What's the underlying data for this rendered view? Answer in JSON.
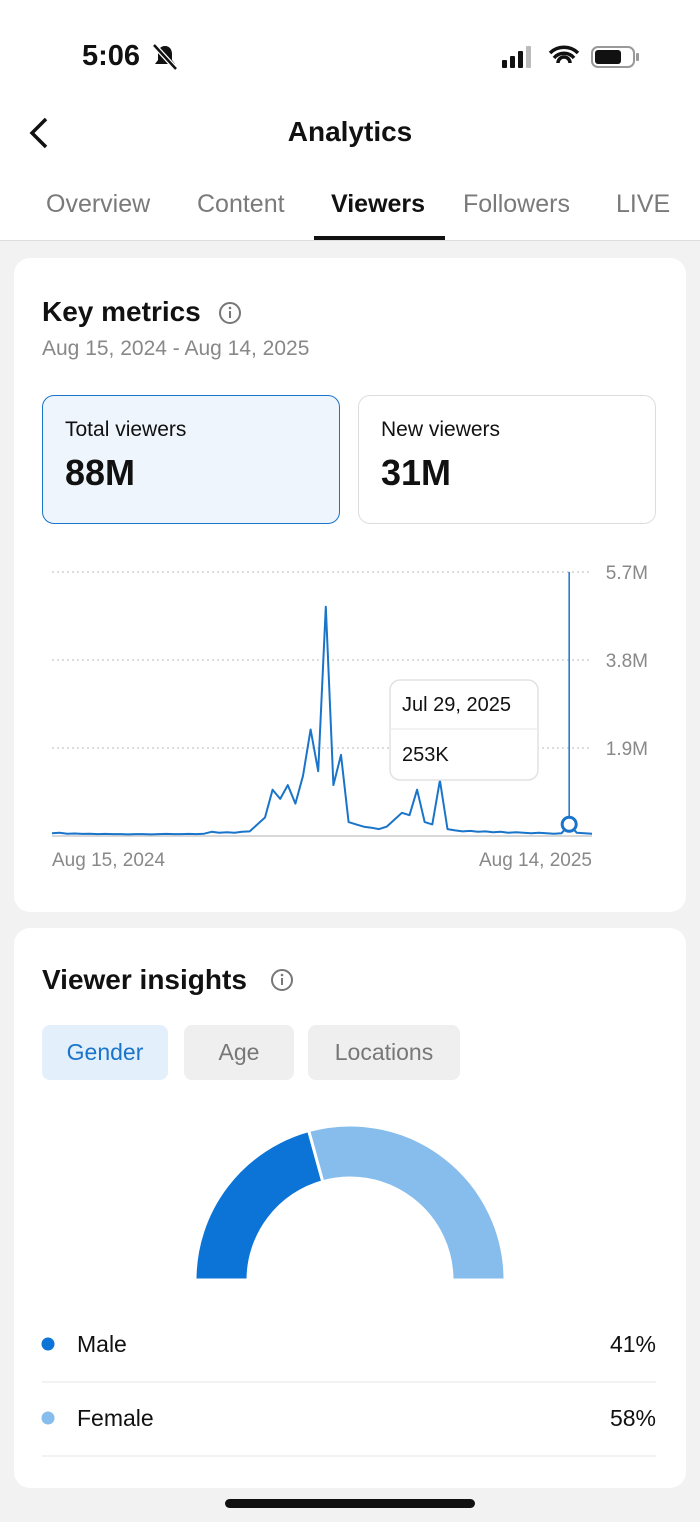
{
  "status_bar": {
    "time": "5:06"
  },
  "header": {
    "title": "Analytics"
  },
  "tabs": {
    "items": [
      "Overview",
      "Content",
      "Viewers",
      "Followers",
      "LIVE"
    ],
    "active": 2
  },
  "key_metrics": {
    "title": "Key metrics",
    "date_range": "Aug 15, 2024 - Aug 14, 2025",
    "cards": [
      {
        "label": "Total viewers",
        "value": "88M"
      },
      {
        "label": "New viewers",
        "value": "31M"
      }
    ]
  },
  "viewer_insights": {
    "title": "Viewer insights",
    "filters": [
      "Gender",
      "Age",
      "Locations"
    ],
    "active": 0
  },
  "chart_data": [
    {
      "type": "line",
      "color": "#1a74c9",
      "categories": [
        "Aug 15, 2024",
        null,
        null,
        null,
        null,
        null,
        null,
        null,
        null,
        null,
        null,
        null,
        null,
        null,
        null,
        null,
        null,
        null,
        null,
        null,
        null,
        null,
        null,
        null,
        null,
        null,
        null,
        null,
        null,
        null,
        null,
        null,
        null,
        null,
        null,
        null,
        null,
        null,
        null,
        null,
        null,
        null,
        null,
        null,
        null,
        null,
        null,
        null,
        null,
        null,
        null,
        null,
        null,
        null,
        null,
        null,
        null,
        null,
        null,
        null,
        null,
        null,
        null,
        null,
        null,
        null,
        null,
        null,
        null,
        null,
        null,
        "Aug 14, 2025"
      ],
      "values": [
        60000,
        70000,
        50000,
        55000,
        45000,
        50000,
        40000,
        45000,
        40000,
        40000,
        35000,
        40000,
        40000,
        35000,
        40000,
        45000,
        40000,
        40000,
        45000,
        40000,
        50000,
        90000,
        70000,
        80000,
        70000,
        90000,
        100000,
        250000,
        400000,
        1000000,
        800000,
        1100000,
        700000,
        1300000,
        2300000,
        1400000,
        4950000,
        1100000,
        1750000,
        300000,
        250000,
        200000,
        180000,
        150000,
        200000,
        350000,
        500000,
        450000,
        1000000,
        300000,
        250000,
        1200000,
        150000,
        120000,
        100000,
        110000,
        90000,
        100000,
        80000,
        90000,
        70000,
        80000,
        70000,
        60000,
        70000,
        60000,
        50000,
        60000,
        253000,
        70000,
        60000,
        50000
      ],
      "ylim": [
        0,
        5700000
      ],
      "yticks": [
        {
          "value": 1900000,
          "label": "1.9M"
        },
        {
          "value": 3800000,
          "label": "3.8M"
        },
        {
          "value": 5700000,
          "label": "5.7M"
        }
      ],
      "grid": true,
      "tooltip": {
        "category": "Jul 29, 2025",
        "value": 253000,
        "value_label": "253K"
      }
    },
    {
      "type": "donut",
      "categories": [
        "Male",
        "Female"
      ],
      "values": [
        41,
        58
      ],
      "value_labels": [
        "41%",
        "58%"
      ],
      "colors": [
        "#0b74d6",
        "#86bdec"
      ]
    }
  ]
}
